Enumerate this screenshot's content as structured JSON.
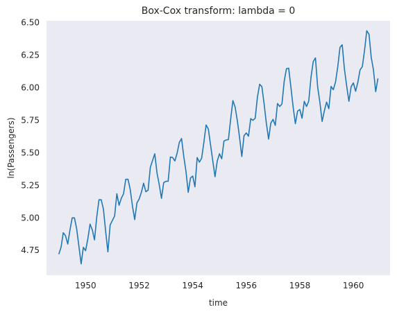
{
  "chart_data": {
    "type": "line",
    "title": "Box-Cox transform: lambda = 0",
    "xlabel": "time",
    "ylabel": "ln(Passengers)",
    "xlim": [
      1948.54,
      1961.37
    ],
    "ylim": [
      4.557,
      6.51
    ],
    "grid": false,
    "background_color": "#eaeaf2",
    "line_color": "#1f77b4",
    "x_ticks": [
      1950,
      1952,
      1954,
      1956,
      1958,
      1960
    ],
    "x_tick_labels": [
      "1950",
      "1952",
      "1954",
      "1956",
      "1958",
      "1960"
    ],
    "y_ticks": [
      4.75,
      5.0,
      5.25,
      5.5,
      5.75,
      6.0,
      6.25,
      6.5
    ],
    "y_tick_labels": [
      "4.75",
      "5.00",
      "5.25",
      "5.50",
      "5.75",
      "6.00",
      "6.25",
      "6.50"
    ],
    "x_start": 1949.0,
    "x_step": 0.0833333,
    "series": [
      {
        "values": [
          4.718,
          4.771,
          4.883,
          4.86,
          4.796,
          4.905,
          4.997,
          4.997,
          4.913,
          4.779,
          4.644,
          4.771,
          4.745,
          4.836,
          4.949,
          4.905,
          4.828,
          5.004,
          5.136,
          5.136,
          5.063,
          4.891,
          4.736,
          4.942,
          4.977,
          5.011,
          5.182,
          5.094,
          5.147,
          5.182,
          5.293,
          5.293,
          5.215,
          5.088,
          4.984,
          5.112,
          5.142,
          5.193,
          5.263,
          5.198,
          5.209,
          5.384,
          5.438,
          5.489,
          5.342,
          5.252,
          5.147,
          5.268,
          5.278,
          5.278,
          5.464,
          5.46,
          5.434,
          5.493,
          5.576,
          5.606,
          5.468,
          5.352,
          5.193,
          5.303,
          5.318,
          5.236,
          5.46,
          5.425,
          5.455,
          5.576,
          5.71,
          5.68,
          5.557,
          5.434,
          5.313,
          5.434,
          5.489,
          5.451,
          5.587,
          5.595,
          5.598,
          5.753,
          5.897,
          5.849,
          5.743,
          5.613,
          5.468,
          5.628,
          5.649,
          5.624,
          5.759,
          5.746,
          5.762,
          5.924,
          6.023,
          6.004,
          5.872,
          5.724,
          5.602,
          5.724,
          5.753,
          5.707,
          5.875,
          5.852,
          5.872,
          6.045,
          6.142,
          6.146,
          6.001,
          5.849,
          5.72,
          5.817,
          5.829,
          5.762,
          5.892,
          5.852,
          5.894,
          6.075,
          6.196,
          6.225,
          6.001,
          5.883,
          5.737,
          5.82,
          5.886,
          5.835,
          6.006,
          5.981,
          6.04,
          6.157,
          6.306,
          6.326,
          6.138,
          6.009,
          5.892,
          6.004,
          6.033,
          5.969,
          6.038,
          6.133,
          6.157,
          6.282,
          6.433,
          6.407,
          6.23,
          6.133,
          5.966,
          6.068
        ]
      }
    ]
  }
}
